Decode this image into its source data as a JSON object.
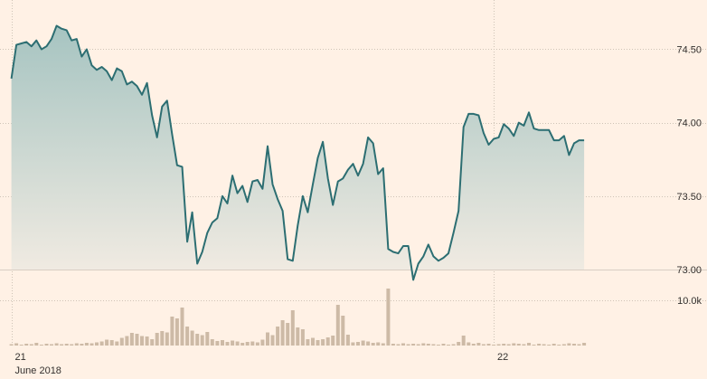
{
  "chart_data": {
    "type": "line",
    "title": "",
    "xlabel": "",
    "ylabel": "",
    "x_ticks": [
      {
        "label": "21",
        "t": 0,
        "sublabel": "June 2018"
      },
      {
        "label": "22",
        "t": 96
      }
    ],
    "x_range": [
      -1,
      130
    ],
    "price_axis": {
      "ylim": [
        73.0,
        74.7
      ],
      "ticks": [
        74.5,
        74.0,
        73.5,
        73.0
      ],
      "tick_labels": [
        "74.50",
        "74.00",
        "73.50",
        "73.00"
      ]
    },
    "volume_axis": {
      "ylim": [
        0,
        14000
      ],
      "ticks": [
        10000
      ],
      "tick_labels": [
        "10.0k"
      ]
    },
    "series": [
      {
        "kind": "price",
        "color": "#2c6e72",
        "fill_top": "#a6c4c1",
        "fill_bottom": "#f3ece3",
        "values": [
          74.3,
          74.53,
          74.54,
          74.55,
          74.52,
          74.56,
          74.5,
          74.52,
          74.57,
          74.66,
          74.64,
          74.63,
          74.56,
          74.57,
          74.45,
          74.5,
          74.39,
          74.36,
          74.38,
          74.35,
          74.29,
          74.37,
          74.35,
          74.26,
          74.28,
          74.25,
          74.19,
          74.27,
          74.05,
          73.9,
          74.11,
          74.15,
          73.92,
          73.71,
          73.7,
          73.19,
          73.39,
          73.04,
          73.12,
          73.25,
          73.32,
          73.35,
          73.5,
          73.45,
          73.64,
          73.52,
          73.57,
          73.46,
          73.6,
          73.61,
          73.55,
          73.84,
          73.58,
          73.48,
          73.4,
          73.07,
          73.06,
          73.3,
          73.5,
          73.39,
          73.58,
          73.76,
          73.87,
          73.62,
          73.44,
          73.6,
          73.62,
          73.68,
          73.72,
          73.64,
          73.72,
          73.9,
          73.86,
          73.65,
          73.69,
          73.14,
          73.12,
          73.11,
          73.16,
          73.16,
          72.93,
          73.04,
          73.09,
          73.17,
          73.09,
          73.06,
          73.08,
          73.11,
          73.25,
          73.4,
          73.97,
          74.06,
          74.06,
          74.05,
          73.93,
          73.85,
          73.89,
          73.9,
          73.99,
          73.96,
          73.91,
          74.0,
          73.98,
          74.07,
          73.96,
          73.95,
          73.95,
          73.95,
          73.88,
          73.88,
          73.91,
          73.78,
          73.86,
          73.88,
          73.88
        ]
      },
      {
        "kind": "volume",
        "color": "#cdbaa6",
        "values": [
          300,
          500,
          200,
          400,
          300,
          600,
          200,
          400,
          300,
          500,
          300,
          400,
          300,
          500,
          400,
          600,
          500,
          700,
          900,
          800,
          1200,
          900,
          1700,
          2100,
          2800,
          2600,
          2100,
          2000,
          1400,
          2800,
          3200,
          2900,
          6400,
          6000,
          7900,
          4200,
          3300,
          2600,
          2300,
          3000,
          1400,
          1000,
          1200,
          800,
          1100,
          900,
          600,
          800,
          900,
          700,
          1300,
          2900,
          2300,
          4200,
          5600,
          5000,
          6900,
          4000,
          3600,
          1400,
          1700,
          1200,
          1400,
          1800,
          2200,
          1200,
          6600,
          2400,
          700,
          800,
          1100,
          900,
          600,
          700,
          500,
          600,
          400,
          300,
          500,
          300,
          400,
          300,
          500,
          400,
          300,
          200,
          400,
          200,
          300,
          800,
          2200,
          700,
          400,
          600,
          300,
          400,
          200,
          300,
          400,
          300,
          500,
          400,
          300,
          600,
          200,
          400,
          300,
          200,
          400,
          200,
          300,
          500,
          400,
          300,
          600
        ]
      }
    ],
    "volume_spikes": [
      [
        75,
        12600
      ],
      [
        65,
        9000
      ],
      [
        34,
        8400
      ],
      [
        56,
        7800
      ],
      [
        19,
        1300
      ]
    ]
  }
}
